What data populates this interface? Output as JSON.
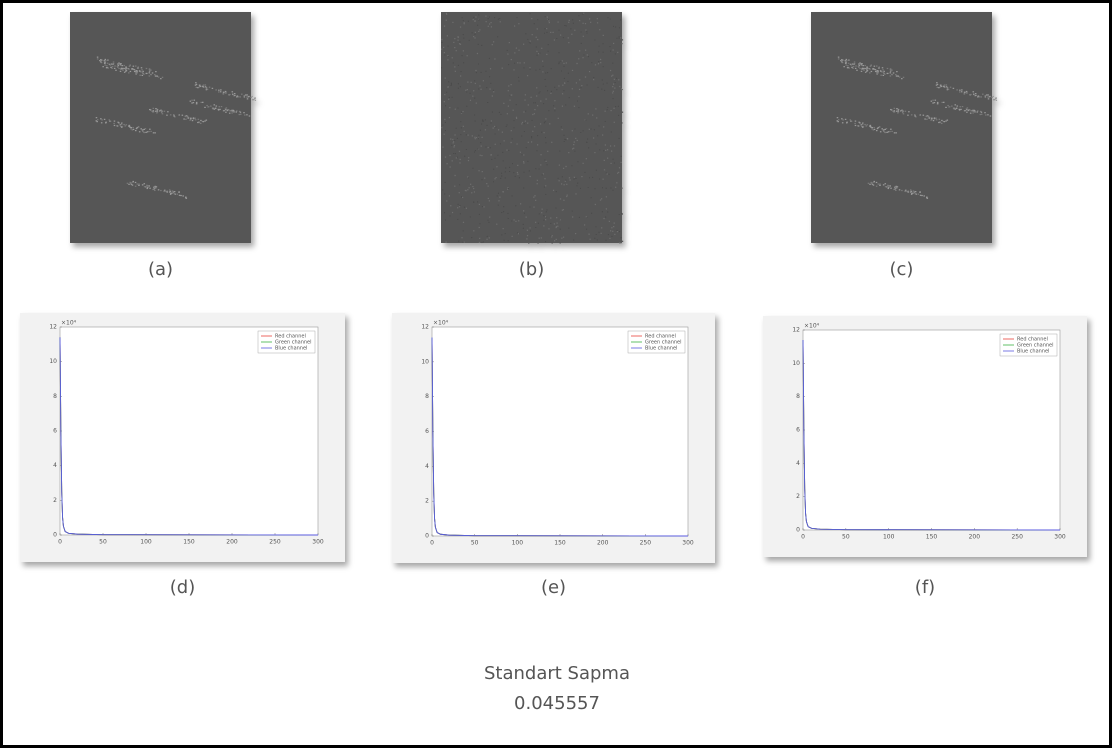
{
  "images": [
    {
      "label": "(a)"
    },
    {
      "label": "(b)"
    },
    {
      "label": "(c)"
    }
  ],
  "chart_data": [
    {
      "type": "line",
      "label": "(d)",
      "y_exponent": "×10⁴",
      "xlim": [
        0,
        300
      ],
      "ylim": [
        0,
        12
      ],
      "xticks": [
        0,
        50,
        100,
        150,
        200,
        250,
        300
      ],
      "yticks": [
        0,
        2,
        4,
        6,
        8,
        10,
        12
      ],
      "x": [
        0,
        1,
        2,
        3,
        4,
        6,
        10,
        20,
        50,
        300
      ],
      "series": [
        {
          "name": "Red channel",
          "color": "#e8453c",
          "values": [
            11.4,
            6,
            2.5,
            1,
            0.5,
            0.2,
            0.1,
            0.05,
            0.02,
            0
          ]
        },
        {
          "name": "Green channel",
          "color": "#3cb043",
          "values": [
            11.4,
            6,
            2.5,
            1,
            0.5,
            0.2,
            0.1,
            0.05,
            0.02,
            0
          ]
        },
        {
          "name": "Blue channel",
          "color": "#5a5ae0",
          "values": [
            11.4,
            6,
            2.5,
            1,
            0.5,
            0.2,
            0.1,
            0.05,
            0.02,
            0
          ]
        }
      ]
    },
    {
      "type": "line",
      "label": "(e)",
      "y_exponent": "×10⁴",
      "xlim": [
        0,
        300
      ],
      "ylim": [
        0,
        12
      ],
      "xticks": [
        0,
        50,
        100,
        150,
        200,
        250,
        300
      ],
      "yticks": [
        0,
        2,
        4,
        6,
        8,
        10,
        12
      ],
      "x": [
        0,
        1,
        2,
        3,
        4,
        6,
        10,
        20,
        50,
        300
      ],
      "series": [
        {
          "name": "Red channel",
          "color": "#e8453c",
          "values": [
            11.4,
            6,
            2.5,
            1,
            0.5,
            0.2,
            0.1,
            0.05,
            0.02,
            0
          ]
        },
        {
          "name": "Green channel",
          "color": "#3cb043",
          "values": [
            11.4,
            6,
            2.5,
            1,
            0.5,
            0.2,
            0.1,
            0.05,
            0.02,
            0
          ]
        },
        {
          "name": "Blue channel",
          "color": "#5a5ae0",
          "values": [
            11.4,
            6,
            2.5,
            1,
            0.5,
            0.2,
            0.1,
            0.05,
            0.02,
            0
          ]
        }
      ]
    },
    {
      "type": "line",
      "label": "(f)",
      "y_exponent": "×10⁴",
      "xlim": [
        0,
        300
      ],
      "ylim": [
        0,
        12
      ],
      "xticks": [
        0,
        50,
        100,
        150,
        200,
        250,
        300
      ],
      "yticks": [
        0,
        2,
        4,
        6,
        8,
        10,
        12
      ],
      "x": [
        0,
        1,
        2,
        3,
        4,
        6,
        10,
        20,
        50,
        300
      ],
      "series": [
        {
          "name": "Red channel",
          "color": "#e8453c",
          "values": [
            11.4,
            6,
            2.5,
            1,
            0.5,
            0.2,
            0.1,
            0.05,
            0.02,
            0
          ]
        },
        {
          "name": "Green channel",
          "color": "#3cb043",
          "values": [
            11.4,
            6,
            2.5,
            1,
            0.5,
            0.2,
            0.1,
            0.05,
            0.02,
            0
          ]
        },
        {
          "name": "Blue channel",
          "color": "#5a5ae0",
          "values": [
            11.4,
            6,
            2.5,
            1,
            0.5,
            0.2,
            0.1,
            0.05,
            0.02,
            0
          ]
        }
      ]
    }
  ],
  "footer": {
    "title": "Standart Sapma",
    "value": "0.045557"
  }
}
